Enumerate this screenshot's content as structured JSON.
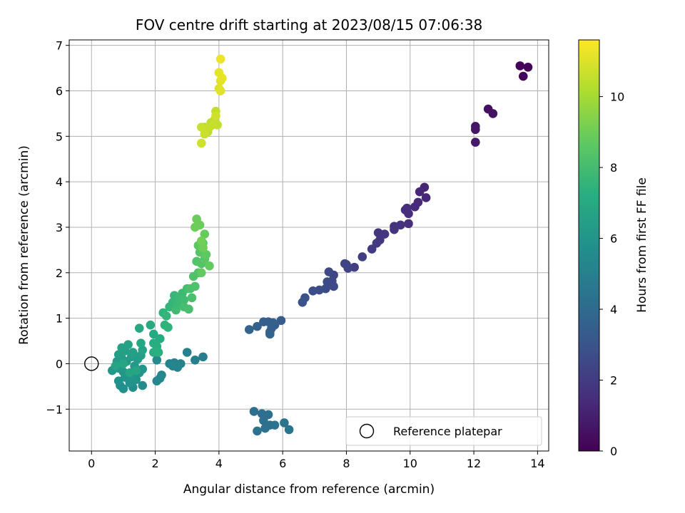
{
  "chart_data": {
    "type": "scatter",
    "title": "FOV centre drift starting at 2023/08/15 07:06:38",
    "xlabel": "Angular distance from reference (arcmin)",
    "ylabel": "Rotation from reference (arcmin)",
    "xlim": [
      -0.7,
      14.35
    ],
    "ylim": [
      -1.92,
      7.12
    ],
    "xticks": [
      "0",
      "2",
      "4",
      "6",
      "8",
      "10",
      "12",
      "14"
    ],
    "yticks": [
      "−1",
      "0",
      "1",
      "2",
      "3",
      "4",
      "5",
      "6",
      "7"
    ],
    "grid": true,
    "legend": {
      "location": "lower-right",
      "entries": [
        "Reference platepar"
      ]
    },
    "reference_point": {
      "label": "Reference platepar",
      "x": 0,
      "y": 0
    },
    "colorbar": {
      "label": "Hours from first FF file",
      "colormap": "viridis",
      "range": [
        0,
        11.6
      ],
      "ticks": [
        "0",
        "2",
        "4",
        "6",
        "8",
        "10"
      ]
    },
    "series": [
      {
        "points": [
          [
            13.45,
            6.55,
            0.1
          ],
          [
            13.7,
            6.52,
            0.1
          ],
          [
            13.55,
            6.32,
            0.2
          ],
          [
            12.45,
            5.6,
            0.5
          ],
          [
            12.6,
            5.5,
            0.55
          ],
          [
            12.05,
            5.22,
            0.65
          ],
          [
            12.05,
            5.15,
            0.7
          ],
          [
            12.05,
            4.87,
            0.75
          ],
          [
            10.45,
            3.88,
            1.2
          ],
          [
            10.3,
            3.78,
            1.25
          ],
          [
            10.5,
            3.65,
            1.3
          ],
          [
            10.25,
            3.55,
            1.35
          ],
          [
            10.15,
            3.45,
            1.4
          ],
          [
            9.9,
            3.42,
            1.45
          ],
          [
            9.95,
            3.3,
            1.5
          ],
          [
            9.85,
            3.38,
            1.5
          ],
          [
            9.95,
            3.08,
            1.55
          ],
          [
            9.7,
            3.05,
            1.6
          ],
          [
            9.5,
            3.02,
            1.65
          ],
          [
            9.5,
            2.95,
            1.7
          ],
          [
            9.2,
            2.85,
            1.8
          ],
          [
            9.0,
            2.88,
            1.85
          ],
          [
            9.05,
            2.72,
            1.9
          ],
          [
            8.95,
            2.65,
            1.95
          ],
          [
            8.8,
            2.52,
            2.0
          ],
          [
            8.5,
            2.35,
            2.1
          ],
          [
            8.25,
            2.12,
            2.2
          ],
          [
            8.0,
            2.18,
            2.25
          ],
          [
            8.05,
            2.1,
            2.3
          ],
          [
            7.95,
            2.2,
            2.3
          ],
          [
            7.6,
            1.95,
            2.4
          ],
          [
            7.45,
            2.02,
            2.45
          ],
          [
            7.55,
            1.82,
            2.5
          ],
          [
            7.6,
            1.7,
            2.55
          ],
          [
            7.35,
            1.65,
            2.6
          ],
          [
            7.4,
            1.8,
            2.6
          ],
          [
            7.15,
            1.62,
            2.7
          ],
          [
            6.95,
            1.6,
            2.75
          ],
          [
            6.7,
            1.45,
            2.85
          ],
          [
            6.62,
            1.35,
            2.9
          ],
          [
            5.95,
            0.95,
            3.3
          ],
          [
            5.75,
            0.85,
            3.35
          ],
          [
            5.65,
            0.78,
            3.4
          ],
          [
            5.55,
            0.92,
            3.45
          ],
          [
            5.6,
            0.7,
            3.5
          ],
          [
            5.4,
            0.92,
            3.5
          ],
          [
            5.7,
            0.9,
            3.55
          ],
          [
            5.2,
            0.82,
            3.6
          ],
          [
            4.95,
            0.75,
            3.65
          ],
          [
            5.6,
            0.65,
            3.7
          ],
          [
            5.1,
            -1.05,
            4.15
          ],
          [
            5.35,
            -1.1,
            4.15
          ],
          [
            5.55,
            -1.12,
            4.2
          ],
          [
            5.4,
            -1.25,
            4.2
          ],
          [
            5.6,
            -1.35,
            4.25
          ],
          [
            5.45,
            -1.42,
            4.3
          ],
          [
            5.2,
            -1.48,
            4.3
          ],
          [
            5.75,
            -1.35,
            4.35
          ],
          [
            6.05,
            -1.3,
            4.4
          ],
          [
            6.2,
            -1.45,
            4.45
          ],
          [
            3.5,
            0.15,
            4.9
          ],
          [
            3.25,
            0.08,
            4.95
          ],
          [
            3.0,
            0.25,
            5.0
          ],
          [
            2.8,
            0.0,
            5.05
          ],
          [
            2.6,
            0.02,
            5.1
          ],
          [
            2.45,
            0.0,
            5.15
          ],
          [
            2.55,
            -0.05,
            5.2
          ],
          [
            2.7,
            -0.08,
            5.2
          ],
          [
            2.2,
            -0.25,
            5.3
          ],
          [
            2.05,
            -0.38,
            5.35
          ],
          [
            2.15,
            -0.32,
            5.4
          ],
          [
            2.05,
            0.08,
            5.5
          ],
          [
            1.6,
            -0.48,
            5.6
          ],
          [
            1.3,
            -0.52,
            5.65
          ],
          [
            1.0,
            -0.55,
            5.7
          ],
          [
            0.9,
            -0.48,
            5.75
          ],
          [
            0.85,
            -0.38,
            5.8
          ],
          [
            1.2,
            -0.42,
            5.85
          ],
          [
            1.4,
            -0.35,
            5.9
          ],
          [
            1.25,
            -0.28,
            5.95
          ],
          [
            1.5,
            -0.2,
            6.0
          ],
          [
            1.05,
            -0.3,
            6.0
          ],
          [
            1.6,
            -0.12,
            6.05
          ],
          [
            0.65,
            -0.15,
            6.1
          ],
          [
            0.85,
            -0.1,
            6.1
          ],
          [
            1.0,
            -0.18,
            6.15
          ],
          [
            1.35,
            -0.05,
            6.2
          ],
          [
            1.1,
            0.05,
            6.25
          ],
          [
            0.8,
            0.05,
            6.3
          ],
          [
            1.45,
            0.1,
            6.3
          ],
          [
            0.95,
            0.12,
            6.35
          ],
          [
            1.25,
            0.15,
            6.4
          ],
          [
            0.85,
            0.2,
            6.45
          ],
          [
            1.55,
            0.18,
            6.45
          ],
          [
            1.05,
            0.28,
            6.5
          ],
          [
            1.3,
            0.25,
            6.55
          ],
          [
            0.95,
            0.35,
            6.6
          ],
          [
            1.15,
            0.42,
            6.65
          ],
          [
            1.6,
            0.3,
            6.7
          ],
          [
            0.75,
            -0.05,
            6.75
          ],
          [
            1.4,
            -0.15,
            6.8
          ],
          [
            1.2,
            -0.2,
            6.8
          ],
          [
            1.0,
            0.0,
            6.85
          ],
          [
            1.55,
            0.45,
            6.9
          ],
          [
            1.5,
            0.78,
            6.95
          ],
          [
            1.85,
            0.85,
            7.0
          ],
          [
            1.95,
            0.65,
            7.05
          ],
          [
            2.15,
            0.55,
            7.1
          ],
          [
            1.95,
            0.45,
            7.15
          ],
          [
            2.05,
            0.38,
            7.2
          ],
          [
            1.95,
            0.25,
            7.25
          ],
          [
            2.1,
            0.25,
            7.3
          ],
          [
            2.3,
            0.85,
            7.4
          ],
          [
            2.4,
            0.8,
            7.45
          ],
          [
            2.25,
            1.12,
            7.5
          ],
          [
            2.45,
            1.25,
            7.55
          ],
          [
            2.35,
            1.05,
            7.6
          ],
          [
            2.55,
            1.35,
            7.65
          ],
          [
            2.6,
            1.5,
            7.7
          ],
          [
            2.7,
            1.3,
            7.75
          ],
          [
            2.75,
            1.45,
            7.8
          ],
          [
            2.85,
            1.55,
            7.85
          ],
          [
            2.65,
            1.18,
            7.9
          ],
          [
            2.9,
            1.4,
            7.95
          ],
          [
            3.0,
            1.65,
            8.0
          ],
          [
            2.9,
            1.25,
            8.05
          ],
          [
            3.05,
            1.2,
            8.1
          ],
          [
            3.15,
            1.45,
            8.15
          ],
          [
            3.1,
            1.65,
            8.2
          ],
          [
            3.25,
            1.7,
            8.25
          ],
          [
            3.2,
            1.92,
            8.3
          ],
          [
            3.35,
            2.0,
            8.35
          ],
          [
            3.3,
            2.25,
            8.4
          ],
          [
            3.45,
            2.2,
            8.45
          ],
          [
            3.4,
            2.45,
            8.5
          ],
          [
            3.55,
            2.3,
            8.55
          ],
          [
            3.35,
            2.6,
            8.6
          ],
          [
            3.5,
            2.65,
            8.65
          ],
          [
            3.6,
            2.4,
            8.7
          ],
          [
            3.45,
            2.0,
            8.75
          ],
          [
            3.7,
            2.15,
            8.8
          ],
          [
            3.55,
            2.85,
            8.85
          ],
          [
            3.4,
            3.05,
            8.9
          ],
          [
            3.3,
            3.18,
            8.95
          ],
          [
            3.5,
            2.55,
            9.0
          ],
          [
            3.25,
            3.0,
            9.0
          ],
          [
            3.45,
            2.7,
            9.05
          ],
          [
            3.55,
            5.2,
            10.3
          ],
          [
            3.65,
            5.1,
            10.35
          ],
          [
            3.75,
            5.3,
            10.4
          ],
          [
            3.85,
            5.35,
            10.45
          ],
          [
            3.9,
            5.55,
            10.5
          ],
          [
            3.95,
            5.25,
            10.55
          ],
          [
            3.8,
            5.25,
            10.6
          ],
          [
            3.7,
            5.2,
            10.6
          ],
          [
            3.45,
            5.2,
            10.65
          ],
          [
            3.55,
            5.05,
            10.7
          ],
          [
            3.45,
            4.85,
            10.75
          ],
          [
            3.9,
            5.45,
            10.8
          ],
          [
            4.0,
            6.05,
            11.0
          ],
          [
            4.05,
            6.0,
            11.05
          ],
          [
            4.05,
            6.22,
            11.1
          ],
          [
            4.0,
            6.4,
            11.15
          ],
          [
            4.1,
            6.28,
            11.2
          ],
          [
            4.05,
            6.7,
            11.3
          ]
        ]
      }
    ]
  }
}
